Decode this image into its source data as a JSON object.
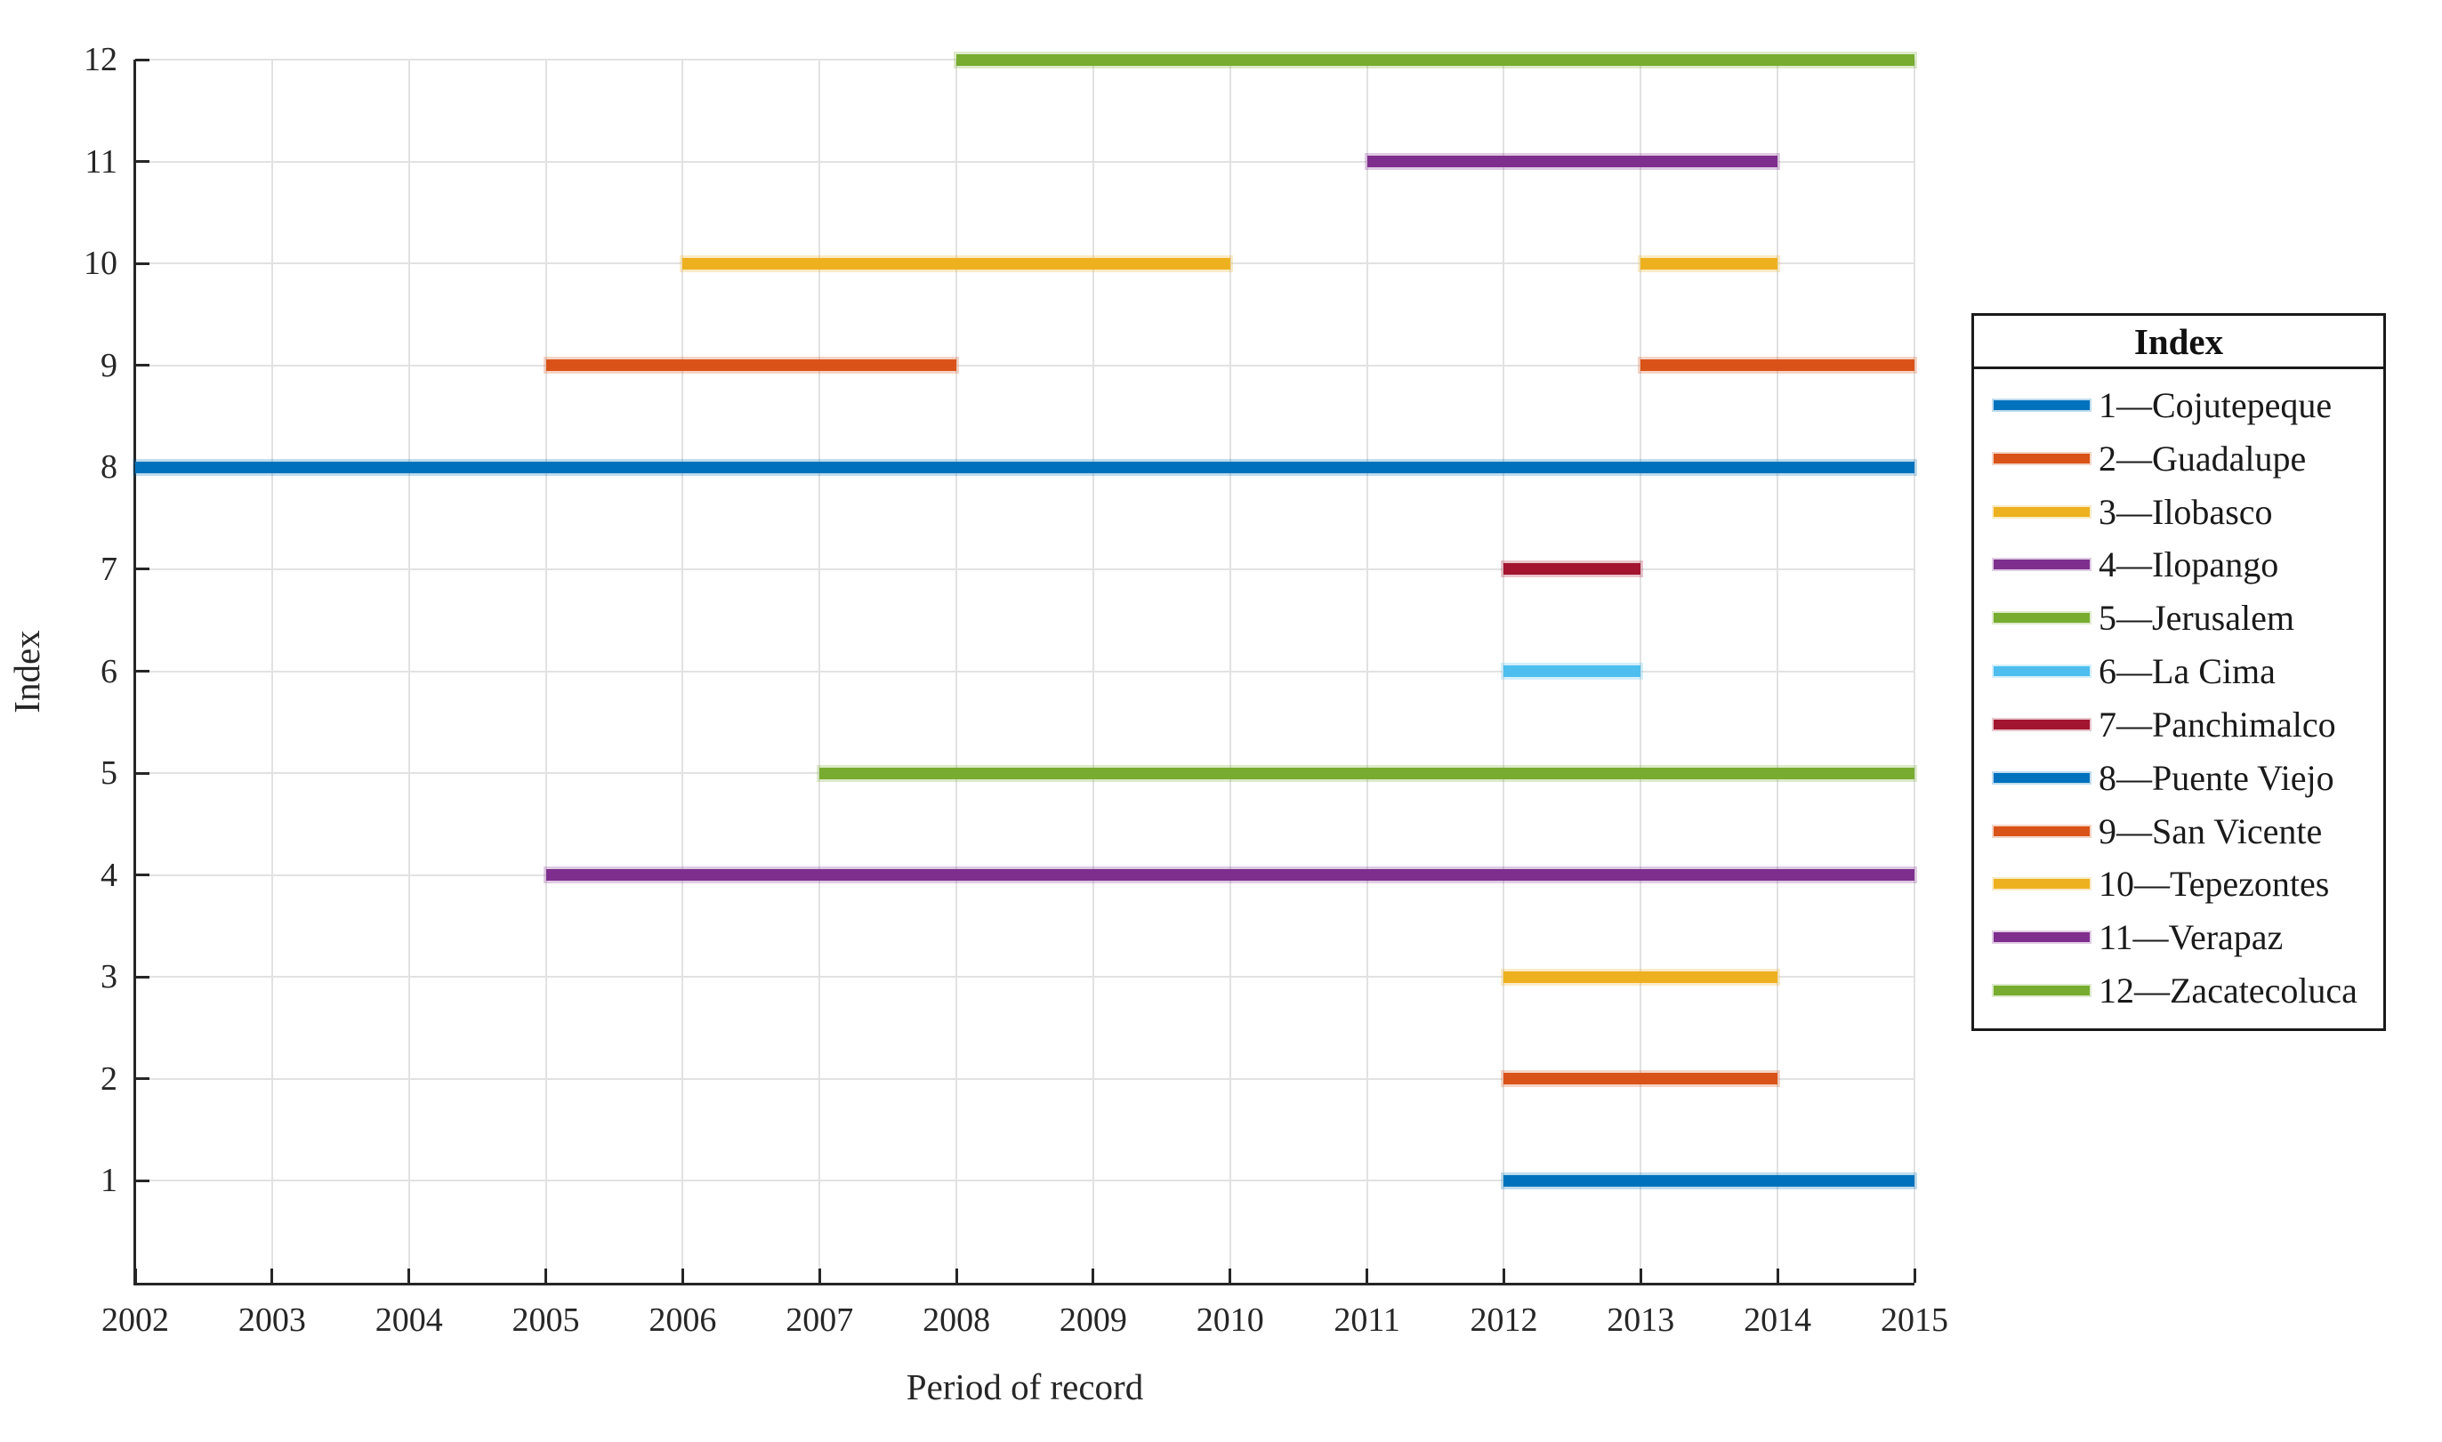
{
  "figure": {
    "background": "#ffffff",
    "x_axis": {
      "label": "Period of record",
      "tick_labels": [
        "2002",
        "2003",
        "2004",
        "2005",
        "2006",
        "2007",
        "2008",
        "2009",
        "2010",
        "2011",
        "2012",
        "2013",
        "2014",
        "2015"
      ]
    },
    "y_axis": {
      "label": "Index",
      "tick_labels": [
        "1",
        "2",
        "3",
        "4",
        "5",
        "6",
        "7",
        "8",
        "9",
        "10",
        "11",
        "12"
      ]
    }
  },
  "legend": {
    "title": "Index",
    "entries": [
      {
        "label": "1—Cojutepeque",
        "color": "#0072BD"
      },
      {
        "label": "2—Guadalupe",
        "color": "#D95319"
      },
      {
        "label": "3—Ilobasco",
        "color": "#EDB120"
      },
      {
        "label": "4—Ilopango",
        "color": "#7E2F8E"
      },
      {
        "label": "5—Jerusalem",
        "color": "#77AC30"
      },
      {
        "label": "6—La Cima",
        "color": "#4DBEEE"
      },
      {
        "label": "7—Panchimalco",
        "color": "#A2142F"
      },
      {
        "label": "8—Puente Viejo",
        "color": "#0072BD"
      },
      {
        "label": "9—San Vicente",
        "color": "#D95319"
      },
      {
        "label": "10—Tepezontes",
        "color": "#EDB120"
      },
      {
        "label": "11—Verapaz",
        "color": "#7E2F8E"
      },
      {
        "label": "12—Zacatecoluca",
        "color": "#77AC30"
      }
    ]
  },
  "chart_data": {
    "type": "line",
    "subtype": "horizontal-interval-gantt",
    "title": "",
    "xlabel": "Period of record",
    "ylabel": "Index",
    "xlim": [
      2002,
      2015
    ],
    "ylim": [
      0,
      12
    ],
    "x_ticks": [
      2002,
      2003,
      2004,
      2005,
      2006,
      2007,
      2008,
      2009,
      2010,
      2011,
      2012,
      2013,
      2014,
      2015
    ],
    "y_ticks": [
      1,
      2,
      3,
      4,
      5,
      6,
      7,
      8,
      9,
      10,
      11,
      12
    ],
    "grid": true,
    "legend_position": "outside-right",
    "series": [
      {
        "index": 1,
        "name": "Cojutepeque",
        "color": "#0072BD",
        "segments": [
          [
            2012,
            2015
          ]
        ]
      },
      {
        "index": 2,
        "name": "Guadalupe",
        "color": "#D95319",
        "segments": [
          [
            2012,
            2014
          ]
        ]
      },
      {
        "index": 3,
        "name": "Ilobasco",
        "color": "#EDB120",
        "segments": [
          [
            2012,
            2014
          ]
        ]
      },
      {
        "index": 4,
        "name": "Ilopango",
        "color": "#7E2F8E",
        "segments": [
          [
            2005,
            2015
          ]
        ]
      },
      {
        "index": 5,
        "name": "Jerusalem",
        "color": "#77AC30",
        "segments": [
          [
            2007,
            2015
          ]
        ]
      },
      {
        "index": 6,
        "name": "La Cima",
        "color": "#4DBEEE",
        "segments": [
          [
            2012,
            2013
          ]
        ]
      },
      {
        "index": 7,
        "name": "Panchimalco",
        "color": "#A2142F",
        "segments": [
          [
            2012,
            2013
          ]
        ]
      },
      {
        "index": 8,
        "name": "Puente Viejo",
        "color": "#0072BD",
        "segments": [
          [
            2002,
            2015
          ]
        ]
      },
      {
        "index": 9,
        "name": "San Vicente",
        "color": "#D95319",
        "segments": [
          [
            2005,
            2008
          ],
          [
            2013,
            2015
          ]
        ]
      },
      {
        "index": 10,
        "name": "Tepezontes",
        "color": "#EDB120",
        "segments": [
          [
            2006,
            2010
          ],
          [
            2013,
            2014
          ]
        ]
      },
      {
        "index": 11,
        "name": "Verapaz",
        "color": "#7E2F8E",
        "segments": [
          [
            2011,
            2014
          ]
        ]
      },
      {
        "index": 12,
        "name": "Zacatecoluca",
        "color": "#77AC30",
        "segments": [
          [
            2008,
            2015
          ]
        ]
      }
    ]
  }
}
